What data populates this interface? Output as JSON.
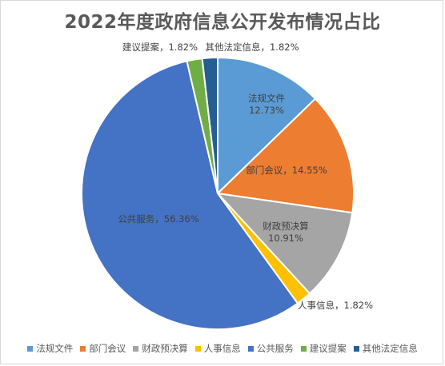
{
  "chart_data": {
    "type": "pie",
    "title": "2022年度政府信息公开发布情况占比",
    "slices": [
      {
        "name": "法规文件",
        "value": 12.73,
        "label_value": "12.73%",
        "color": "#5b9bd5"
      },
      {
        "name": "部门会议",
        "value": 14.55,
        "label_value": "14.55%",
        "color": "#ed7d31"
      },
      {
        "name": "财政预决算",
        "value": 10.91,
        "label_value": "10.91%",
        "color": "#a5a5a5"
      },
      {
        "name": "人事信息",
        "value": 1.82,
        "label_value": "1.82%",
        "color": "#ffc000"
      },
      {
        "name": "公共服务",
        "value": 56.36,
        "label_value": "56.36%",
        "color": "#4472c4"
      },
      {
        "name": "建议提案",
        "value": 1.82,
        "label_value": "1.82%",
        "color": "#70ad47"
      },
      {
        "name": "其他法定信息",
        "value": 1.82,
        "label_value": "1.82%",
        "color": "#255e91"
      }
    ],
    "legend_position": "bottom"
  }
}
